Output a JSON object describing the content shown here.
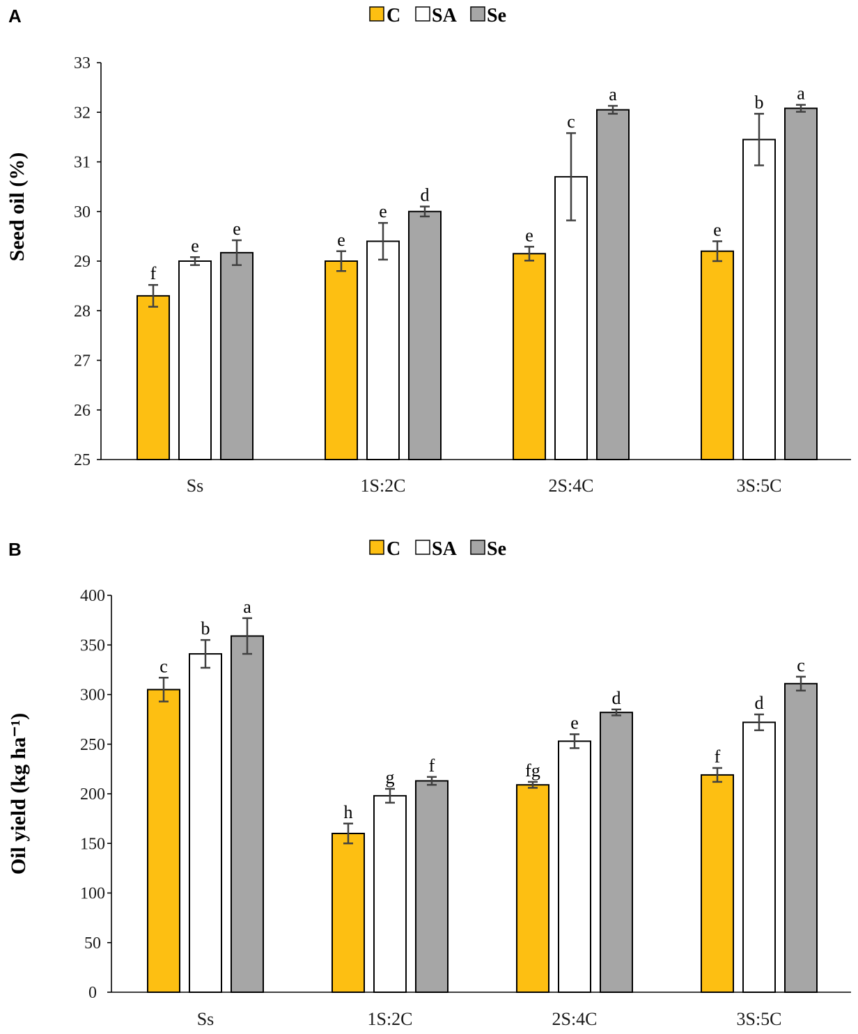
{
  "chart_data": [
    {
      "panel": "A",
      "type": "bar",
      "title": "",
      "xlabel": "",
      "ylabel": "Seed oil (%)",
      "ylim": [
        25,
        33
      ],
      "yticks": [
        25,
        26,
        27,
        28,
        29,
        30,
        31,
        32,
        33
      ],
      "categories": [
        "Ss",
        "1S:2C",
        "2S:4C",
        "3S:5C"
      ],
      "legend_position": "top-center",
      "series": [
        {
          "name": "C",
          "color": "#FDBF12",
          "values": [
            28.3,
            29.0,
            29.15,
            29.2
          ],
          "errors": [
            0.22,
            0.2,
            0.14,
            0.2
          ],
          "labels": [
            "f",
            "e",
            "e",
            "e"
          ]
        },
        {
          "name": "SA",
          "color": "#FFFFFF",
          "values": [
            29.0,
            29.4,
            30.7,
            31.45
          ],
          "errors": [
            0.08,
            0.37,
            0.88,
            0.52
          ],
          "labels": [
            "e",
            "e",
            "c",
            "b"
          ]
        },
        {
          "name": "Se",
          "color": "#A6A6A6",
          "values": [
            29.17,
            30.0,
            32.05,
            32.08
          ],
          "errors": [
            0.25,
            0.1,
            0.08,
            0.07
          ],
          "labels": [
            "e",
            "d",
            "a",
            "a"
          ]
        }
      ]
    },
    {
      "panel": "B",
      "type": "bar",
      "title": "",
      "xlabel": "",
      "ylabel": "Oil yield (kg ha⁻¹)",
      "ylim": [
        0,
        400
      ],
      "yticks": [
        0,
        50,
        100,
        150,
        200,
        250,
        300,
        350,
        400
      ],
      "categories": [
        "Ss",
        "1S:2C",
        "2S:4C",
        "3S:5C"
      ],
      "legend_position": "top-center",
      "series": [
        {
          "name": "C",
          "color": "#FDBF12",
          "values": [
            305,
            160,
            209,
            219
          ],
          "errors": [
            12,
            10,
            3,
            7
          ],
          "labels": [
            "c",
            "h",
            "fg",
            "f"
          ]
        },
        {
          "name": "SA",
          "color": "#FFFFFF",
          "values": [
            341,
            198,
            253,
            272
          ],
          "errors": [
            14,
            7,
            7,
            8
          ],
          "labels": [
            "b",
            "g",
            "e",
            "d"
          ]
        },
        {
          "name": "Se",
          "color": "#A6A6A6",
          "values": [
            359,
            213,
            282,
            311
          ],
          "errors": [
            18,
            4,
            3,
            7
          ],
          "labels": [
            "a",
            "f",
            "d",
            "c"
          ]
        }
      ]
    }
  ]
}
